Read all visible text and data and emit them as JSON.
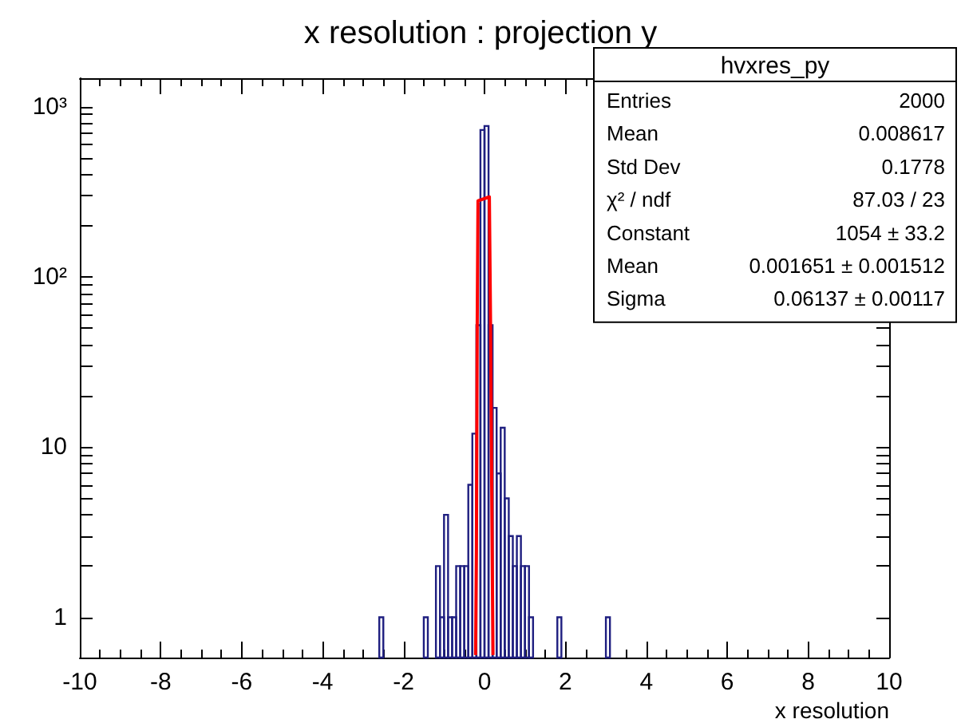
{
  "chart_data": {
    "type": "histogram",
    "title": "x resolution : projection y",
    "xlabel": "x resolution",
    "bins": [
      -2.6,
      -2.5,
      -2.4,
      -2.3,
      -2.2,
      -2.1,
      -2.0,
      -1.9,
      -1.8,
      -1.7,
      -1.6,
      -1.5,
      -1.4,
      -1.3,
      -1.2,
      -1.1,
      -1.0,
      -0.9,
      -0.8,
      -0.7,
      -0.6,
      -0.5,
      -0.4,
      -0.3,
      -0.2,
      -0.1,
      0.0,
      0.1,
      0.2,
      0.3,
      0.4,
      0.5,
      0.6,
      0.7,
      0.8,
      0.9,
      1.0,
      1.1,
      1.2,
      1.3,
      1.4,
      1.5,
      1.6,
      1.7,
      1.8,
      1.9,
      2.0,
      2.1,
      2.2,
      2.3,
      2.4,
      2.5,
      2.6,
      2.7,
      2.8,
      2.9,
      3.0,
      3.1
    ],
    "series": [
      {
        "color": "#1f1f80",
        "values": [
          1,
          null,
          null,
          null,
          null,
          null,
          null,
          null,
          null,
          null,
          null,
          1,
          null,
          null,
          2,
          1,
          4,
          1,
          1,
          2,
          2,
          2,
          6,
          12,
          52,
          730,
          770,
          52,
          17,
          7,
          13,
          5,
          3,
          2,
          3,
          2,
          2,
          1,
          null,
          null,
          null,
          null,
          null,
          null,
          1,
          null,
          null,
          null,
          null,
          null,
          null,
          null,
          null,
          null,
          null,
          null,
          1
        ]
      },
      {
        "type": "line",
        "color": "#ff0000",
        "x": [
          -0.22,
          -0.2,
          -0.18,
          -0.16,
          0.12,
          0.15,
          0.19,
          0.21
        ],
        "values": [
          0.6,
          2.4,
          52,
          280,
          295,
          52,
          2.4,
          0.6
        ]
      }
    ],
    "xlim": [
      -10,
      10
    ],
    "xticks": [
      -10,
      -8,
      -6,
      -4,
      -2,
      0,
      2,
      4,
      6,
      8,
      10
    ],
    "log": "y",
    "ylim": [
      0.58,
      1470
    ],
    "yticks": [
      {
        "value": 1,
        "label": "1"
      },
      {
        "value": 2,
        "label": null
      },
      {
        "value": 3,
        "label": null
      },
      {
        "value": 4,
        "label": null
      },
      {
        "value": 5,
        "label": null
      },
      {
        "value": 6,
        "label": null
      },
      {
        "value": 7,
        "label": null
      },
      {
        "value": 8,
        "label": null
      },
      {
        "value": 9,
        "label": null
      },
      {
        "value": 10,
        "label": "10"
      },
      {
        "value": 20,
        "label": null
      },
      {
        "value": 30,
        "label": null
      },
      {
        "value": 40,
        "label": null
      },
      {
        "value": 50,
        "label": null
      },
      {
        "value": 60,
        "label": null
      },
      {
        "value": 70,
        "label": null
      },
      {
        "value": 80,
        "label": null
      },
      {
        "value": 90,
        "label": null
      },
      {
        "value": 100,
        "label": "10²"
      },
      {
        "value": 200,
        "label": null
      },
      {
        "value": 300,
        "label": null
      },
      {
        "value": 400,
        "label": null
      },
      {
        "value": 500,
        "label": null
      },
      {
        "value": 600,
        "label": null
      },
      {
        "value": 700,
        "label": null
      },
      {
        "value": 800,
        "label": null
      },
      {
        "value": 900,
        "label": null
      },
      {
        "value": 1000,
        "label": "10³"
      }
    ],
    "grid": false,
    "annotations": [
      "hvxres_py",
      "Entries",
      "2000",
      "Mean",
      "0.008617",
      "Std Dev",
      "0.1778",
      "χ² / ndf",
      "87.03 / 23",
      "Constant",
      "1054 ± 33.2",
      "Mean",
      "0.001651 ± 0.001512",
      "Sigma",
      "0.06137 ± 0.00117"
    ]
  }
}
